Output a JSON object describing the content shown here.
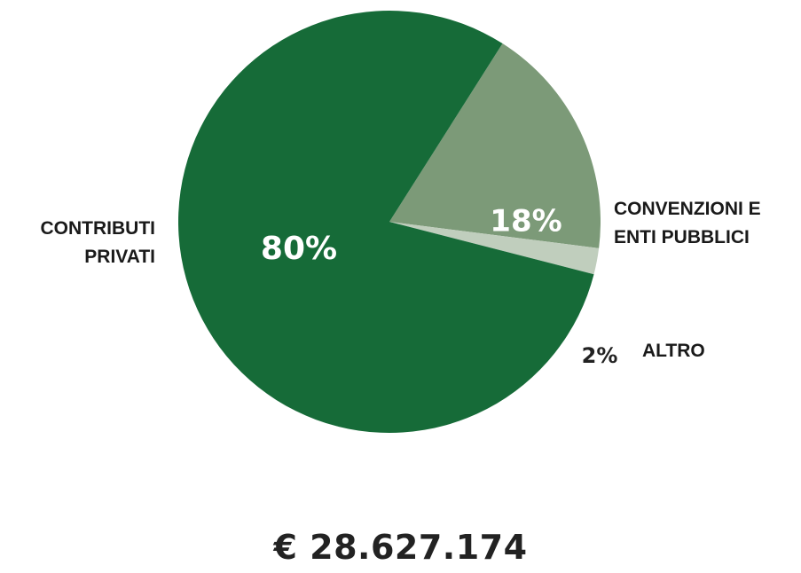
{
  "chart_data": {
    "type": "pie",
    "slices": [
      {
        "label": "CONTRIBUTI PRIVATI",
        "label_lines": [
          "CONTRIBUTI",
          "PRIVATI"
        ],
        "value": 80,
        "value_label": "80%",
        "color": "#166b38",
        "value_label_color": "#ffffff"
      },
      {
        "label": "CONVENZIONI E ENTI PUBBLICI",
        "label_lines": [
          "CONVENZIONI E",
          "ENTI PUBBLICI"
        ],
        "value": 18,
        "value_label": "18%",
        "color": "#7c9a78",
        "value_label_color": "#ffffff"
      },
      {
        "label": "ALTRO",
        "label_lines": [
          "ALTRO"
        ],
        "value": 2,
        "value_label": "2%",
        "color": "#c0cebd",
        "value_label_color": "#222222"
      }
    ]
  },
  "total": "€ 28.627.174"
}
